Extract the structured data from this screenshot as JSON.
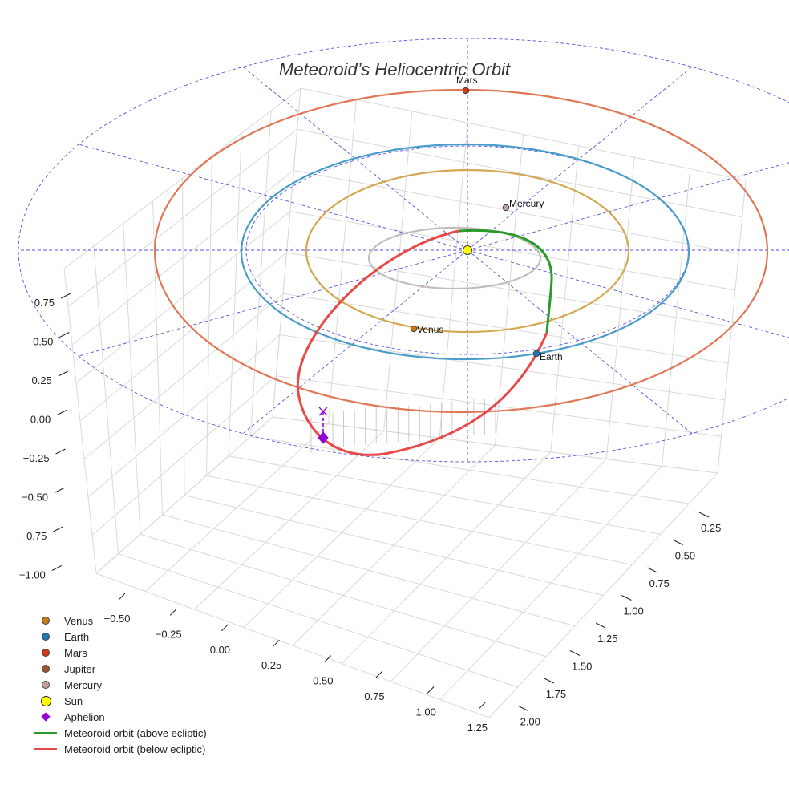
{
  "chart_data": {
    "type": "scatter",
    "title": "Meteoroid’s Heliocentric Orbit",
    "axes": {
      "x_ticks": [
        "−0.50",
        "−0.25",
        "0.00",
        "0.25",
        "0.50",
        "0.75",
        "1.00",
        "1.25"
      ],
      "y_ticks": [
        "0.25",
        "0.50",
        "0.75",
        "1.00",
        "1.25",
        "1.50",
        "1.75",
        "2.00"
      ],
      "z_ticks": [
        "0.75",
        "0.50",
        "0.25",
        "0.00",
        "−0.25",
        "−0.50",
        "−0.75",
        "−1.00"
      ]
    },
    "planets": [
      {
        "name": "Mercury",
        "color": "#c0a09a",
        "orbit_color": "#c4bcb8"
      },
      {
        "name": "Venus",
        "color": "#c8781c",
        "orbit_color": "#d4a853"
      },
      {
        "name": "Earth",
        "color": "#1f77b4",
        "orbit_color": "#4a9cc8"
      },
      {
        "name": "Mars",
        "color": "#d03a1a",
        "orbit_color": "#e07858"
      }
    ],
    "series": [
      {
        "name": "Meteoroid orbit (above ecliptic)",
        "color": "#2a9a2a"
      },
      {
        "name": "Meteoroid orbit (below ecliptic)",
        "color": "#e84848"
      }
    ],
    "legend": [
      {
        "label": "Venus",
        "symbol": "dot",
        "color": "#c8781c"
      },
      {
        "label": "Earth",
        "symbol": "dot",
        "color": "#1f77b4"
      },
      {
        "label": "Mars",
        "symbol": "dot",
        "color": "#d03a1a"
      },
      {
        "label": "Jupiter",
        "symbol": "dot",
        "color": "#a0522d"
      },
      {
        "label": "Mercury",
        "symbol": "dot",
        "color": "#c0a09a"
      },
      {
        "label": "Sun",
        "symbol": "sun",
        "color": "#ffff00"
      },
      {
        "label": "Aphelion",
        "symbol": "diamond",
        "color": "#9400d3"
      },
      {
        "label": "Meteoroid orbit (above ecliptic)",
        "symbol": "line",
        "color": "#2a9a2a"
      },
      {
        "label": "Meteoroid orbit (below ecliptic)",
        "symbol": "line",
        "color": "#e84848"
      }
    ],
    "legend_position": "bottom-left",
    "grid": true
  }
}
